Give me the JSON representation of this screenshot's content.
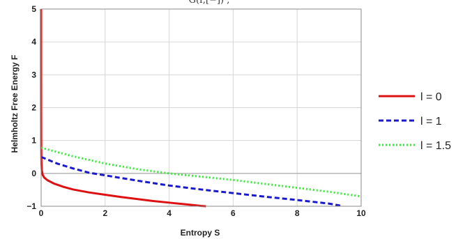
{
  "chart_data": {
    "type": "line",
    "title_fragment": "G(r,[−]) ,",
    "xlabel": "Entropy S",
    "ylabel": "Helmholtz Free Energy F",
    "xlim": [
      0,
      10
    ],
    "ylim": [
      -1,
      5
    ],
    "xticks": [
      0,
      2,
      4,
      6,
      8,
      10
    ],
    "yticks": [
      -1,
      0,
      1,
      2,
      3,
      4,
      5
    ],
    "grid": true,
    "legend_position": "right",
    "series": [
      {
        "name": "l = 0",
        "color": "#dd1111",
        "style": "solid",
        "x": [
          0,
          0.0005,
          0.001,
          0.003,
          0.006,
          0.01,
          0.02,
          0.05,
          0.1,
          0.2,
          0.4,
          0.7,
          1.0,
          1.5,
          2.0,
          2.5,
          3.0,
          3.5,
          4.0,
          4.5,
          5.0,
          5.15
        ],
        "y": [
          5.0,
          3.0,
          2.0,
          1.0,
          0.55,
          0.3,
          0.1,
          -0.05,
          -0.13,
          -0.21,
          -0.31,
          -0.41,
          -0.49,
          -0.58,
          -0.65,
          -0.72,
          -0.78,
          -0.84,
          -0.89,
          -0.94,
          -0.99,
          -1.0
        ]
      },
      {
        "name": "l = 1",
        "color": "#1a1acc",
        "style": "dashed",
        "x": [
          0,
          0.5,
          1.0,
          1.5,
          2.0,
          3.0,
          4.0,
          5.0,
          6.0,
          7.0,
          8.0,
          9.0,
          9.4
        ],
        "y": [
          0.5,
          0.3,
          0.15,
          0.02,
          -0.06,
          -0.22,
          -0.37,
          -0.49,
          -0.6,
          -0.71,
          -0.81,
          -0.92,
          -0.99
        ]
      },
      {
        "name": "l = 1.5",
        "color": "#33ee33",
        "style": "dotted",
        "x": [
          0,
          0.5,
          1.0,
          2.0,
          3.0,
          4.0,
          5.0,
          6.0,
          7.0,
          8.0,
          9.0,
          10.0
        ],
        "y": [
          0.78,
          0.65,
          0.52,
          0.3,
          0.13,
          0.0,
          -0.1,
          -0.2,
          -0.32,
          -0.44,
          -0.56,
          -0.7
        ]
      }
    ]
  }
}
